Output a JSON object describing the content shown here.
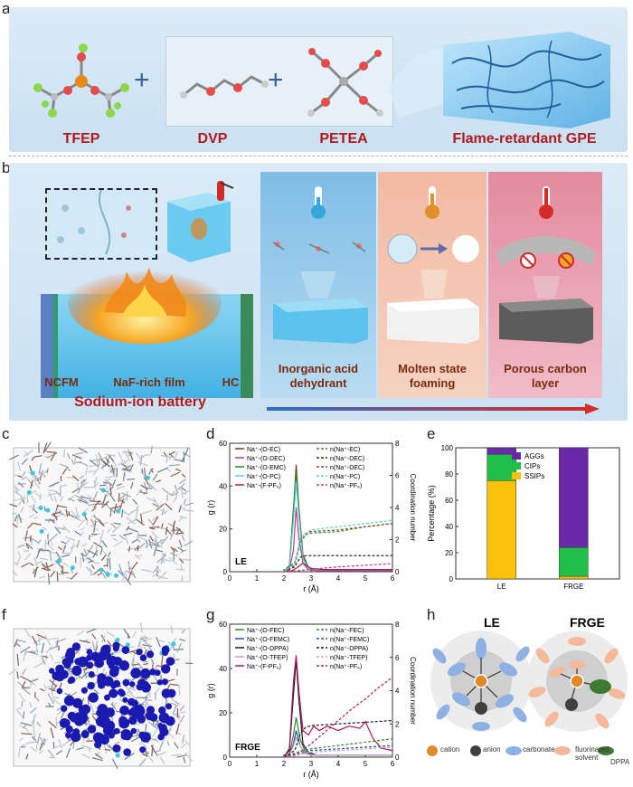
{
  "panel_a": {
    "label": "a",
    "molecules": [
      "TFEP",
      "DVP",
      "PETEA"
    ],
    "plus": "+",
    "product": "Flame-retardant GPE"
  },
  "panel_b": {
    "label": "b",
    "battery_parts": [
      "NCFM",
      "NaF-rich film",
      "HC"
    ],
    "battery_title": "Sodium-ion battery",
    "mechanisms": [
      "Inorganic acid dehydrant",
      "Molten state foaming",
      "Porous carbon layer"
    ],
    "colors": {
      "cool": "#2f6fc4",
      "hot": "#d32a2a"
    }
  },
  "panel_c": {
    "label": "c"
  },
  "panel_f": {
    "label": "f"
  },
  "chart_d": {
    "label": "d",
    "system": "LE",
    "legend_g": [
      "Na⁺-(O-EC)",
      "Na⁺-(O-DEC)",
      "Na⁺-(O-EMC)",
      "Na⁺-(O-PC)",
      "Na⁺-(F-PF₆)"
    ],
    "legend_n": [
      "n(Na⁺-EC)",
      "n(Na⁺-DEC)",
      "n(Na⁺-DEC)",
      "n(Na⁺-PC)",
      "n(Na⁺-PF₆)"
    ],
    "xlabel": "r (Å)",
    "ylabel": "g (r)",
    "y2label": "Coordination number"
  },
  "chart_g": {
    "label": "g",
    "system": "FRGE",
    "legend_g": [
      "Na⁺-(O-FEC)",
      "Na⁺-(O-FEMC)",
      "Na⁺-(O-DPPA)",
      "Na⁺-(O-TFEP)",
      "Na⁺-(F-PF₆)"
    ],
    "legend_n": [
      "n(Na⁺-FEC)",
      "n(Na⁺-FEMC)",
      "n(Na⁺-DPPA)",
      "n(Na⁺-TFEP)",
      "n(Na⁺-PF₆)"
    ],
    "xlabel": "r (Å)",
    "ylabel": "g (r)",
    "y2label": "Coordination number"
  },
  "chart_e": {
    "label": "e",
    "ylabel": "Percentage (%)",
    "legend": [
      "AGGs",
      "CIPs",
      "SSIPs"
    ],
    "categories": [
      "LE",
      "FRGE"
    ]
  },
  "panel_h": {
    "label": "h",
    "titles": [
      "LE",
      "FRGE"
    ],
    "legend": [
      "cation",
      "anion",
      "carbonate",
      "fluorinated solvent",
      "DPPA"
    ],
    "colors": {
      "cation": "#e08a2a",
      "anion": "#404040",
      "carbonate": "#8fb0e3",
      "fluorinated": "#f4b99a",
      "dppa": "#3f7a32"
    }
  },
  "chart_data": [
    {
      "type": "line",
      "title": "LE",
      "xlabel": "r (Å)",
      "ylabel": "g (r)",
      "y2label": "Coordination number",
      "xlim": [
        0,
        6
      ],
      "ylim": [
        0,
        60
      ],
      "y2lim": [
        0,
        8
      ],
      "xticks": [
        0,
        1,
        2,
        3,
        4,
        5,
        6
      ],
      "yticks": [
        0,
        20,
        40,
        60
      ],
      "y2ticks": [
        0,
        2,
        4,
        6,
        8
      ],
      "series": [
        {
          "name": "Na⁺-(O-EC)",
          "color": "#6b3a1f",
          "axis": "left",
          "x": [
            2.0,
            2.2,
            2.35,
            2.45,
            2.55,
            2.7,
            2.9,
            3.1,
            3.5,
            4,
            5,
            6
          ],
          "y": [
            0,
            2,
            28,
            50,
            30,
            8,
            2,
            1,
            1,
            1,
            1,
            1
          ]
        },
        {
          "name": "Na⁺-(O-DEC)",
          "color": "#c0398a",
          "axis": "left",
          "x": [
            2.0,
            2.2,
            2.35,
            2.45,
            2.55,
            2.7,
            2.9,
            3.2,
            4,
            6
          ],
          "y": [
            0,
            1,
            10,
            30,
            16,
            4,
            1,
            0.5,
            0.5,
            0.5
          ]
        },
        {
          "name": "Na⁺-(O-EMC)",
          "color": "#2e8b2e",
          "axis": "left",
          "x": [
            2.0,
            2.2,
            2.35,
            2.45,
            2.55,
            2.7,
            2.9,
            3.2,
            4,
            6
          ],
          "y": [
            0,
            3,
            30,
            46,
            28,
            7,
            2,
            1,
            1,
            1
          ]
        },
        {
          "name": "Na⁺-(O-PC)",
          "color": "#55d0d8",
          "axis": "left",
          "x": [
            2.0,
            2.2,
            2.35,
            2.45,
            2.55,
            2.7,
            2.9,
            3.2,
            4,
            6
          ],
          "y": [
            0,
            2,
            24,
            42,
            26,
            6,
            1.5,
            1,
            1,
            1
          ]
        },
        {
          "name": "Na⁺-(F-PF₆)",
          "color": "#b0195a",
          "axis": "left",
          "x": [
            2.0,
            2.3,
            2.5,
            2.7,
            3.0,
            3.5,
            4,
            6
          ],
          "y": [
            0,
            0.5,
            2,
            4,
            1.5,
            1,
            1,
            1
          ]
        },
        {
          "name": "n(Na⁺-EC)",
          "color": "#2e8b2e",
          "axis": "right",
          "dash": true,
          "x": [
            2.0,
            2.4,
            2.6,
            2.8,
            3.0,
            4,
            5,
            6
          ],
          "y": [
            0,
            0.4,
            1.8,
            2.3,
            2.4,
            2.5,
            2.8,
            3.0
          ]
        },
        {
          "name": "n(Na⁺-DEC)",
          "color": "#3a2a1a",
          "axis": "right",
          "dash": true,
          "x": [
            2.0,
            2.4,
            2.6,
            2.8,
            3.0,
            4,
            5,
            6
          ],
          "y": [
            0,
            0.3,
            0.9,
            1.0,
            1.0,
            1.0,
            1.0,
            1.0
          ]
        },
        {
          "name": "n(Na⁺-DEC)",
          "color": "#8b4a2a",
          "axis": "right",
          "dash": true,
          "x": [
            2.0,
            2.4,
            2.6,
            2.8,
            3.0,
            4,
            5,
            6
          ],
          "y": [
            0,
            0.6,
            2.0,
            2.4,
            2.5,
            2.6,
            2.8,
            3.0
          ]
        },
        {
          "name": "n(Na⁺-PC)",
          "color": "#55d0d8",
          "axis": "right",
          "dash": true,
          "x": [
            2.0,
            2.4,
            2.6,
            2.8,
            3.0,
            4,
            5,
            6
          ],
          "y": [
            0,
            0.5,
            2.0,
            2.4,
            2.6,
            2.8,
            3.0,
            3.2
          ]
        },
        {
          "name": "n(Na⁺-PF₆)",
          "color": "#c0398a",
          "axis": "right",
          "dash": true,
          "x": [
            2.0,
            2.5,
            3.0,
            4,
            5,
            6
          ],
          "y": [
            0,
            0.05,
            0.15,
            0.3,
            0.4,
            0.5
          ]
        }
      ]
    },
    {
      "type": "line",
      "title": "FRGE",
      "xlabel": "r (Å)",
      "ylabel": "g (r)",
      "y2label": "Coordination number",
      "xlim": [
        0,
        6
      ],
      "ylim": [
        0,
        60
      ],
      "y2lim": [
        0,
        8
      ],
      "xticks": [
        0,
        1,
        2,
        3,
        4,
        5,
        6
      ],
      "yticks": [
        0,
        20,
        40,
        60
      ],
      "y2ticks": [
        0,
        2,
        4,
        6,
        8
      ],
      "series": [
        {
          "name": "Na⁺-(O-FEC)",
          "color": "#2e8b2e",
          "axis": "left",
          "x": [
            2.0,
            2.2,
            2.35,
            2.45,
            2.6,
            2.8,
            3.0,
            3.5,
            4,
            6
          ],
          "y": [
            0,
            1,
            10,
            18,
            8,
            2,
            1,
            1,
            1,
            1
          ]
        },
        {
          "name": "Na⁺-(O-FEMC)",
          "color": "#2f4faa",
          "axis": "left",
          "x": [
            2.0,
            2.2,
            2.35,
            2.45,
            2.6,
            2.8,
            3.0,
            4,
            6
          ],
          "y": [
            0,
            1,
            6,
            12,
            5,
            1.5,
            1,
            1,
            1
          ]
        },
        {
          "name": "Na⁺-(O-DPPA)",
          "color": "#1a1a1a",
          "axis": "left",
          "x": [
            2.0,
            2.2,
            2.35,
            2.45,
            2.55,
            2.7,
            2.9,
            3.2,
            4,
            6
          ],
          "y": [
            0,
            3,
            28,
            44,
            26,
            6,
            2,
            1,
            1,
            1
          ]
        },
        {
          "name": "Na⁺-(O-TFEP)",
          "color": "#c9a0c9",
          "axis": "left",
          "x": [
            2.0,
            2.2,
            2.35,
            2.45,
            2.6,
            2.8,
            3.0,
            4,
            6
          ],
          "y": [
            0,
            1,
            5,
            9,
            5,
            1.5,
            1,
            1,
            1
          ]
        },
        {
          "name": "Na⁺-(F-PF₆)",
          "color": "#b0195a",
          "axis": "left",
          "x": [
            2.0,
            2.2,
            2.35,
            2.45,
            2.55,
            2.7,
            2.9,
            3.1,
            3.3,
            3.6,
            4.0,
            4.4,
            4.8,
            5.0,
            5.3,
            5.6,
            6.0
          ],
          "y": [
            0,
            4,
            34,
            46,
            30,
            12,
            10,
            14,
            12,
            14,
            12,
            14,
            13,
            16,
            8,
            4,
            3
          ]
        },
        {
          "name": "n(Na⁺-FEC)",
          "color": "#2e8b2e",
          "axis": "right",
          "dash": true,
          "x": [
            2.0,
            2.5,
            3.0,
            4,
            5,
            6
          ],
          "y": [
            0,
            0.3,
            0.5,
            0.7,
            0.9,
            1.1
          ]
        },
        {
          "name": "n(Na⁺-FEMC)",
          "color": "#2f4faa",
          "axis": "right",
          "dash": true,
          "x": [
            2.0,
            2.5,
            3.0,
            4,
            5,
            6
          ],
          "y": [
            0,
            0.2,
            0.4,
            0.5,
            0.6,
            0.7
          ]
        },
        {
          "name": "n(Na⁺-DPPA)",
          "color": "#1a1a1a",
          "axis": "right",
          "dash": true,
          "x": [
            2.0,
            2.4,
            2.6,
            2.8,
            3.0,
            4,
            5,
            6
          ],
          "y": [
            0,
            0.4,
            1.4,
            1.8,
            1.9,
            2.0,
            2.1,
            2.2
          ]
        },
        {
          "name": "n(Na⁺-TFEP)",
          "color": "#c9a0c9",
          "axis": "right",
          "dash": true,
          "x": [
            2.0,
            2.5,
            3.0,
            4,
            5,
            6
          ],
          "y": [
            0,
            0.1,
            0.3,
            0.4,
            0.5,
            0.6
          ]
        },
        {
          "name": "n(Na⁺-PF₆)",
          "color": "#b0195a",
          "axis": "right",
          "dash": true,
          "x": [
            2.0,
            2.5,
            3.0,
            3.5,
            4,
            4.5,
            5,
            5.5,
            6
          ],
          "y": [
            0,
            0.2,
            0.8,
            1.5,
            2.2,
            2.9,
            3.5,
            4.2,
            4.8
          ]
        }
      ]
    },
    {
      "type": "bar",
      "stacked": true,
      "categories": [
        "LE",
        "FRGE"
      ],
      "ylabel": "Percentage (%)",
      "ylim": [
        0,
        100
      ],
      "yticks": [
        0,
        20,
        40,
        60,
        80,
        100
      ],
      "series": [
        {
          "name": "SSIPs",
          "color": "#f9c10a",
          "values": [
            75,
            2
          ]
        },
        {
          "name": "CIPs",
          "color": "#1fbf4a",
          "values": [
            20,
            22
          ]
        },
        {
          "name": "AGGs",
          "color": "#6a2aa8",
          "values": [
            5,
            76
          ]
        }
      ]
    }
  ]
}
